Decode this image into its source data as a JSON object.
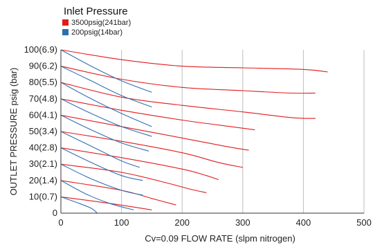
{
  "chart_data": {
    "type": "line",
    "xlabel": "Cv=0.09 FLOW RATE (slpm nitrogen)",
    "ylabel": "OUTLET PRESSURE psig (bar)",
    "xlim": [
      0,
      500
    ],
    "ylim": [
      0,
      100
    ],
    "x_ticks": [
      {
        "value": 0,
        "label": "0"
      },
      {
        "value": 100,
        "label": "100"
      },
      {
        "value": 200,
        "label": "200"
      },
      {
        "value": 300,
        "label": "300"
      },
      {
        "value": 400,
        "label": "400"
      },
      {
        "value": 500,
        "label": "500"
      }
    ],
    "y_ticks": [
      {
        "value": 0,
        "label": "0"
      },
      {
        "value": 10,
        "label": "10(0.7)"
      },
      {
        "value": 20,
        "label": "20(1.4)"
      },
      {
        "value": 30,
        "label": "30(2.1)"
      },
      {
        "value": 40,
        "label": "40(2.8)"
      },
      {
        "value": 50,
        "label": "50(3.4)"
      },
      {
        "value": 60,
        "label": "60(4.1)"
      },
      {
        "value": 70,
        "label": "70(4.8)"
      },
      {
        "value": 80,
        "label": "80(5.5)"
      },
      {
        "value": 90,
        "label": "90(6.2)"
      },
      {
        "value": 100,
        "label": "100(6.9)"
      }
    ],
    "grid": "vertical",
    "legend": {
      "title": "Inlet Pressure",
      "placement": "top-left",
      "entries": [
        {
          "label": "3500psig(241bar)",
          "color": "#e31a1c"
        },
        {
          "label": "200psig(14bar)",
          "color": "#2f6fb0"
        }
      ]
    },
    "series": [
      {
        "group": "3500psig(241bar)",
        "color": "#e31a1c",
        "points": [
          [
            0,
            100
          ],
          [
            100,
            94
          ],
          [
            200,
            90
          ],
          [
            300,
            89
          ],
          [
            400,
            88
          ],
          [
            440,
            86.5
          ]
        ]
      },
      {
        "group": "3500psig(241bar)",
        "color": "#e31a1c",
        "points": [
          [
            0,
            90
          ],
          [
            100,
            82
          ],
          [
            200,
            77
          ],
          [
            300,
            75
          ],
          [
            380,
            73.5
          ],
          [
            420,
            73.5
          ]
        ]
      },
      {
        "group": "3500psig(241bar)",
        "color": "#e31a1c",
        "points": [
          [
            0,
            80
          ],
          [
            100,
            71
          ],
          [
            200,
            66
          ],
          [
            300,
            62
          ],
          [
            380,
            58.5
          ],
          [
            420,
            58
          ]
        ]
      },
      {
        "group": "3500psig(241bar)",
        "color": "#e31a1c",
        "points": [
          [
            0,
            70
          ],
          [
            100,
            63
          ],
          [
            200,
            57
          ],
          [
            280,
            53
          ],
          [
            320,
            51
          ]
        ]
      },
      {
        "group": "3500psig(241bar)",
        "color": "#e31a1c",
        "points": [
          [
            0,
            60
          ],
          [
            100,
            53
          ],
          [
            200,
            46
          ],
          [
            270,
            41
          ],
          [
            310,
            38.5
          ]
        ]
      },
      {
        "group": "3500psig(241bar)",
        "color": "#e31a1c",
        "points": [
          [
            0,
            50
          ],
          [
            100,
            44
          ],
          [
            200,
            37
          ],
          [
            260,
            31
          ],
          [
            300,
            28
          ]
        ]
      },
      {
        "group": "3500psig(241bar)",
        "color": "#e31a1c",
        "points": [
          [
            0,
            40
          ],
          [
            100,
            34
          ],
          [
            200,
            27
          ],
          [
            240,
            23
          ],
          [
            260,
            20.5
          ]
        ]
      },
      {
        "group": "3500psig(241bar)",
        "color": "#e31a1c",
        "points": [
          [
            0,
            30
          ],
          [
            100,
            25
          ],
          [
            180,
            18
          ],
          [
            210,
            15
          ],
          [
            240,
            12.5
          ]
        ]
      },
      {
        "group": "3500psig(241bar)",
        "color": "#e31a1c",
        "points": [
          [
            0,
            20
          ],
          [
            100,
            14
          ],
          [
            150,
            9
          ],
          [
            190,
            5
          ]
        ]
      },
      {
        "group": "3500psig(241bar)",
        "color": "#e31a1c",
        "points": [
          [
            0,
            10
          ],
          [
            80,
            6
          ],
          [
            150,
            2
          ]
        ]
      },
      {
        "group": "200psig(14bar)",
        "color": "#2f6fb0",
        "points": [
          [
            0,
            100
          ],
          [
            50,
            90
          ],
          [
            100,
            81
          ],
          [
            150,
            74
          ]
        ]
      },
      {
        "group": "200psig(14bar)",
        "color": "#2f6fb0",
        "points": [
          [
            0,
            90
          ],
          [
            50,
            81
          ],
          [
            100,
            72
          ],
          [
            150,
            65
          ]
        ]
      },
      {
        "group": "200psig(14bar)",
        "color": "#2f6fb0",
        "points": [
          [
            0,
            80
          ],
          [
            50,
            70
          ],
          [
            100,
            61
          ],
          [
            150,
            53
          ]
        ]
      },
      {
        "group": "200psig(14bar)",
        "color": "#2f6fb0",
        "points": [
          [
            0,
            70
          ],
          [
            50,
            61
          ],
          [
            100,
            53
          ],
          [
            150,
            47
          ]
        ]
      },
      {
        "group": "200psig(14bar)",
        "color": "#2f6fb0",
        "points": [
          [
            0,
            60
          ],
          [
            50,
            51
          ],
          [
            100,
            43
          ],
          [
            145,
            38
          ]
        ]
      },
      {
        "group": "200psig(14bar)",
        "color": "#2f6fb0",
        "points": [
          [
            0,
            50
          ],
          [
            50,
            41
          ],
          [
            100,
            32
          ],
          [
            130,
            28
          ]
        ]
      },
      {
        "group": "200psig(14bar)",
        "color": "#2f6fb0",
        "points": [
          [
            0,
            40
          ],
          [
            50,
            31
          ],
          [
            100,
            23
          ],
          [
            135,
            20
          ]
        ]
      },
      {
        "group": "200psig(14bar)",
        "color": "#2f6fb0",
        "points": [
          [
            0,
            30
          ],
          [
            50,
            21
          ],
          [
            100,
            14
          ],
          [
            135,
            11
          ]
        ]
      },
      {
        "group": "200psig(14bar)",
        "color": "#2f6fb0",
        "points": [
          [
            0,
            20
          ],
          [
            40,
            12
          ],
          [
            80,
            6
          ],
          [
            120,
            2
          ]
        ]
      },
      {
        "group": "200psig(14bar)",
        "color": "#2f6fb0",
        "points": [
          [
            0,
            10
          ],
          [
            30,
            6
          ],
          [
            50,
            3
          ],
          [
            60,
            0
          ]
        ]
      }
    ]
  }
}
